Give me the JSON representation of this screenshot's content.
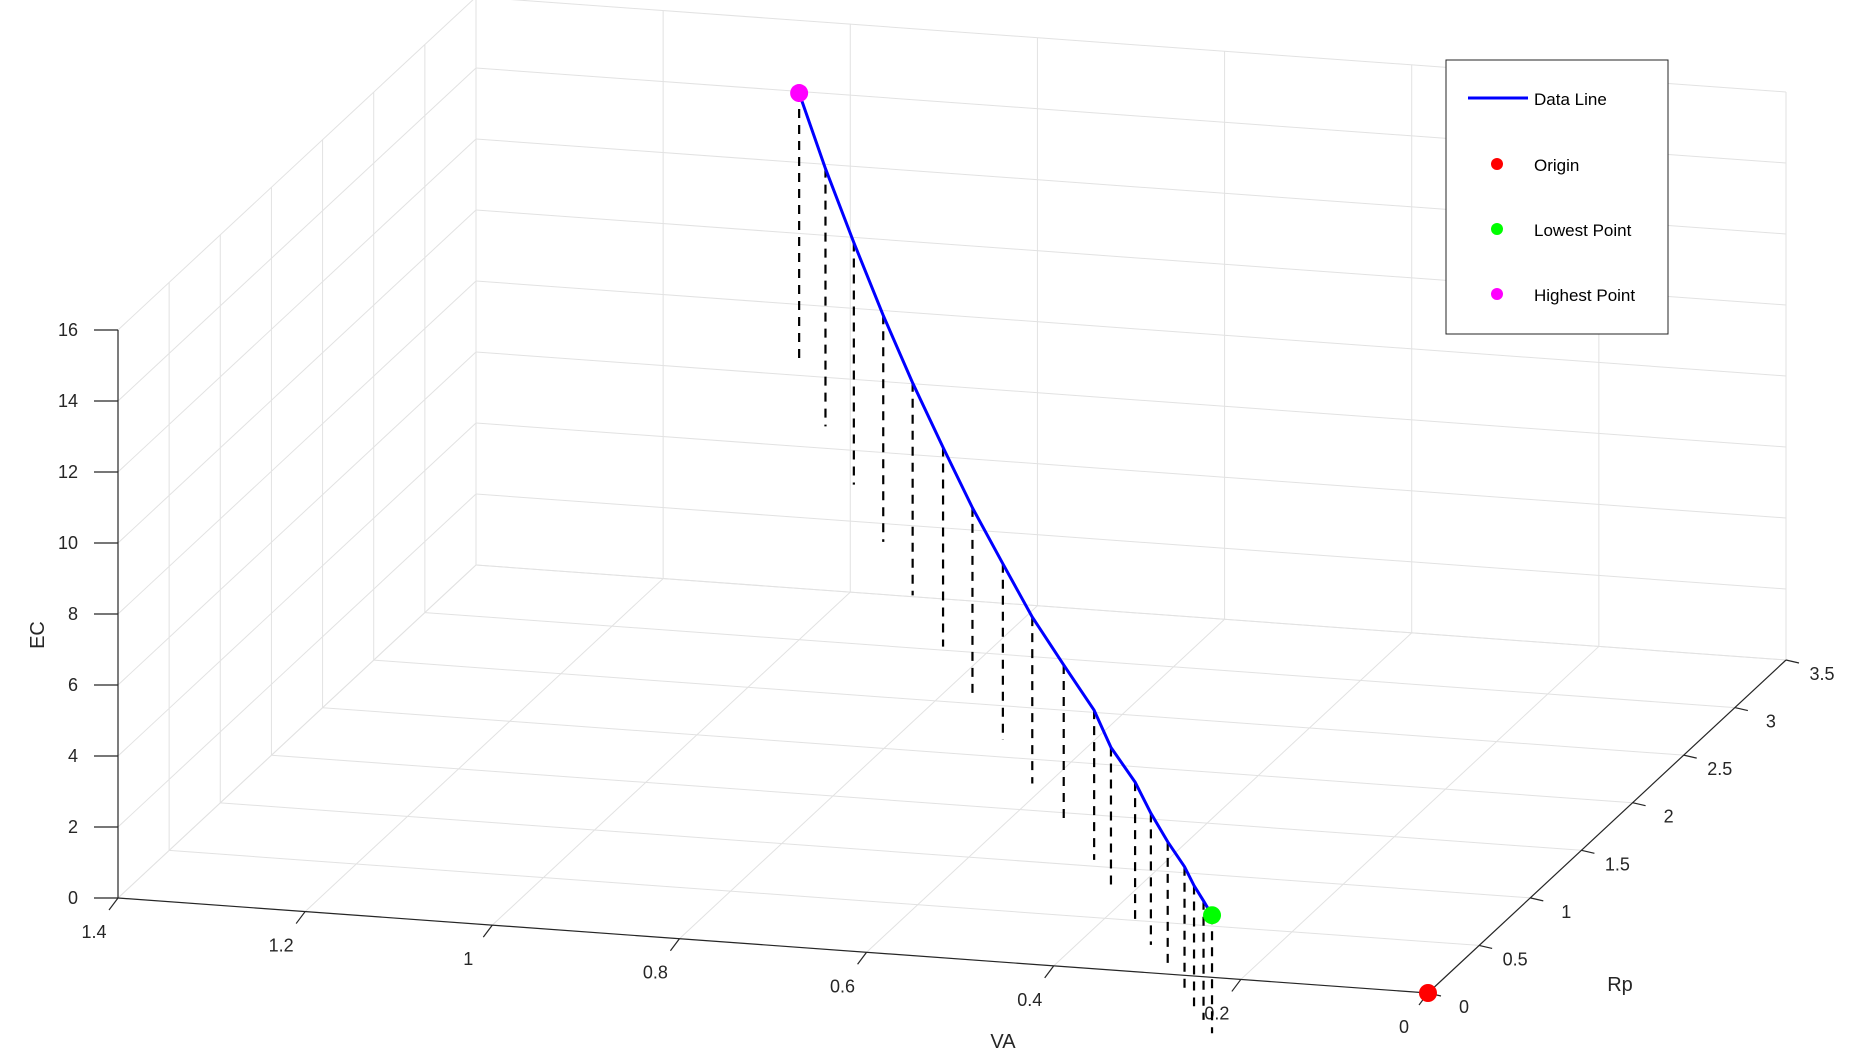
{
  "chart_data": {
    "type": "line",
    "dimensions": "3d",
    "xlabel": "VA",
    "ylabel": "Rp",
    "zlabel": "EC",
    "xlim": [
      0,
      1.4
    ],
    "ylim": [
      0,
      3.5
    ],
    "zlim": [
      0,
      16
    ],
    "x_ticks": [
      "0",
      "0.2",
      "0.4",
      "0.6",
      "0.8",
      "1",
      "1.2",
      "1.4"
    ],
    "y_ticks": [
      "0",
      "0.5",
      "1",
      "1.5",
      "2",
      "2.5",
      "3",
      "3.5"
    ],
    "z_ticks": [
      "0",
      "2",
      "4",
      "6",
      "8",
      "10",
      "12",
      "14",
      "16"
    ],
    "grid": true,
    "legend_position": "top-right",
    "series": [
      {
        "name": "Data Line",
        "color": "#0000ff",
        "style": "solid line with dashed black drop lines to the floor",
        "points": [
          {
            "VA": 1.0,
            "Rp": 3.0,
            "EC": 15.4
          },
          {
            "VA": 0.95,
            "Rp": 2.8,
            "EC": 13.9
          },
          {
            "VA": 0.9,
            "Rp": 2.62,
            "EC": 12.4
          },
          {
            "VA": 0.85,
            "Rp": 2.45,
            "EC": 10.9
          },
          {
            "VA": 0.8,
            "Rp": 2.28,
            "EC": 9.55
          },
          {
            "VA": 0.75,
            "Rp": 2.12,
            "EC": 8.25
          },
          {
            "VA": 0.7,
            "Rp": 1.95,
            "EC": 7.1
          },
          {
            "VA": 0.65,
            "Rp": 1.79,
            "EC": 6.05
          },
          {
            "VA": 0.6,
            "Rp": 1.62,
            "EC": 5.1
          },
          {
            "VA": 0.55,
            "Rp": 1.47,
            "EC": 4.25
          },
          {
            "VA": 0.5,
            "Rp": 1.31,
            "EC": 3.5
          },
          {
            "VA": 0.47,
            "Rp": 1.2,
            "EC": 2.8
          },
          {
            "VA": 0.43,
            "Rp": 1.07,
            "EC": 2.25
          },
          {
            "VA": 0.4,
            "Rp": 0.95,
            "EC": 1.75
          },
          {
            "VA": 0.37,
            "Rp": 0.84,
            "EC": 1.3
          },
          {
            "VA": 0.34,
            "Rp": 0.73,
            "EC": 0.95
          },
          {
            "VA": 0.32,
            "Rp": 0.64,
            "EC": 0.7
          },
          {
            "VA": 0.3,
            "Rp": 0.55,
            "EC": 0.55
          },
          {
            "VA": 0.28,
            "Rp": 0.45,
            "EC": 0.45
          }
        ]
      },
      {
        "name": "Origin",
        "color": "#ff0000",
        "marker": "circle",
        "points": [
          {
            "VA": 0,
            "Rp": 0,
            "EC": 0
          }
        ]
      },
      {
        "name": "Lowest Point",
        "color": "#00ff00",
        "marker": "circle",
        "points": [
          {
            "VA": 0.28,
            "Rp": 0.45,
            "EC": 0.45
          }
        ]
      },
      {
        "name": "Highest Point",
        "color": "#ff00ff",
        "marker": "circle",
        "points": [
          {
            "VA": 1.0,
            "Rp": 3.0,
            "EC": 15.4
          }
        ]
      }
    ]
  }
}
